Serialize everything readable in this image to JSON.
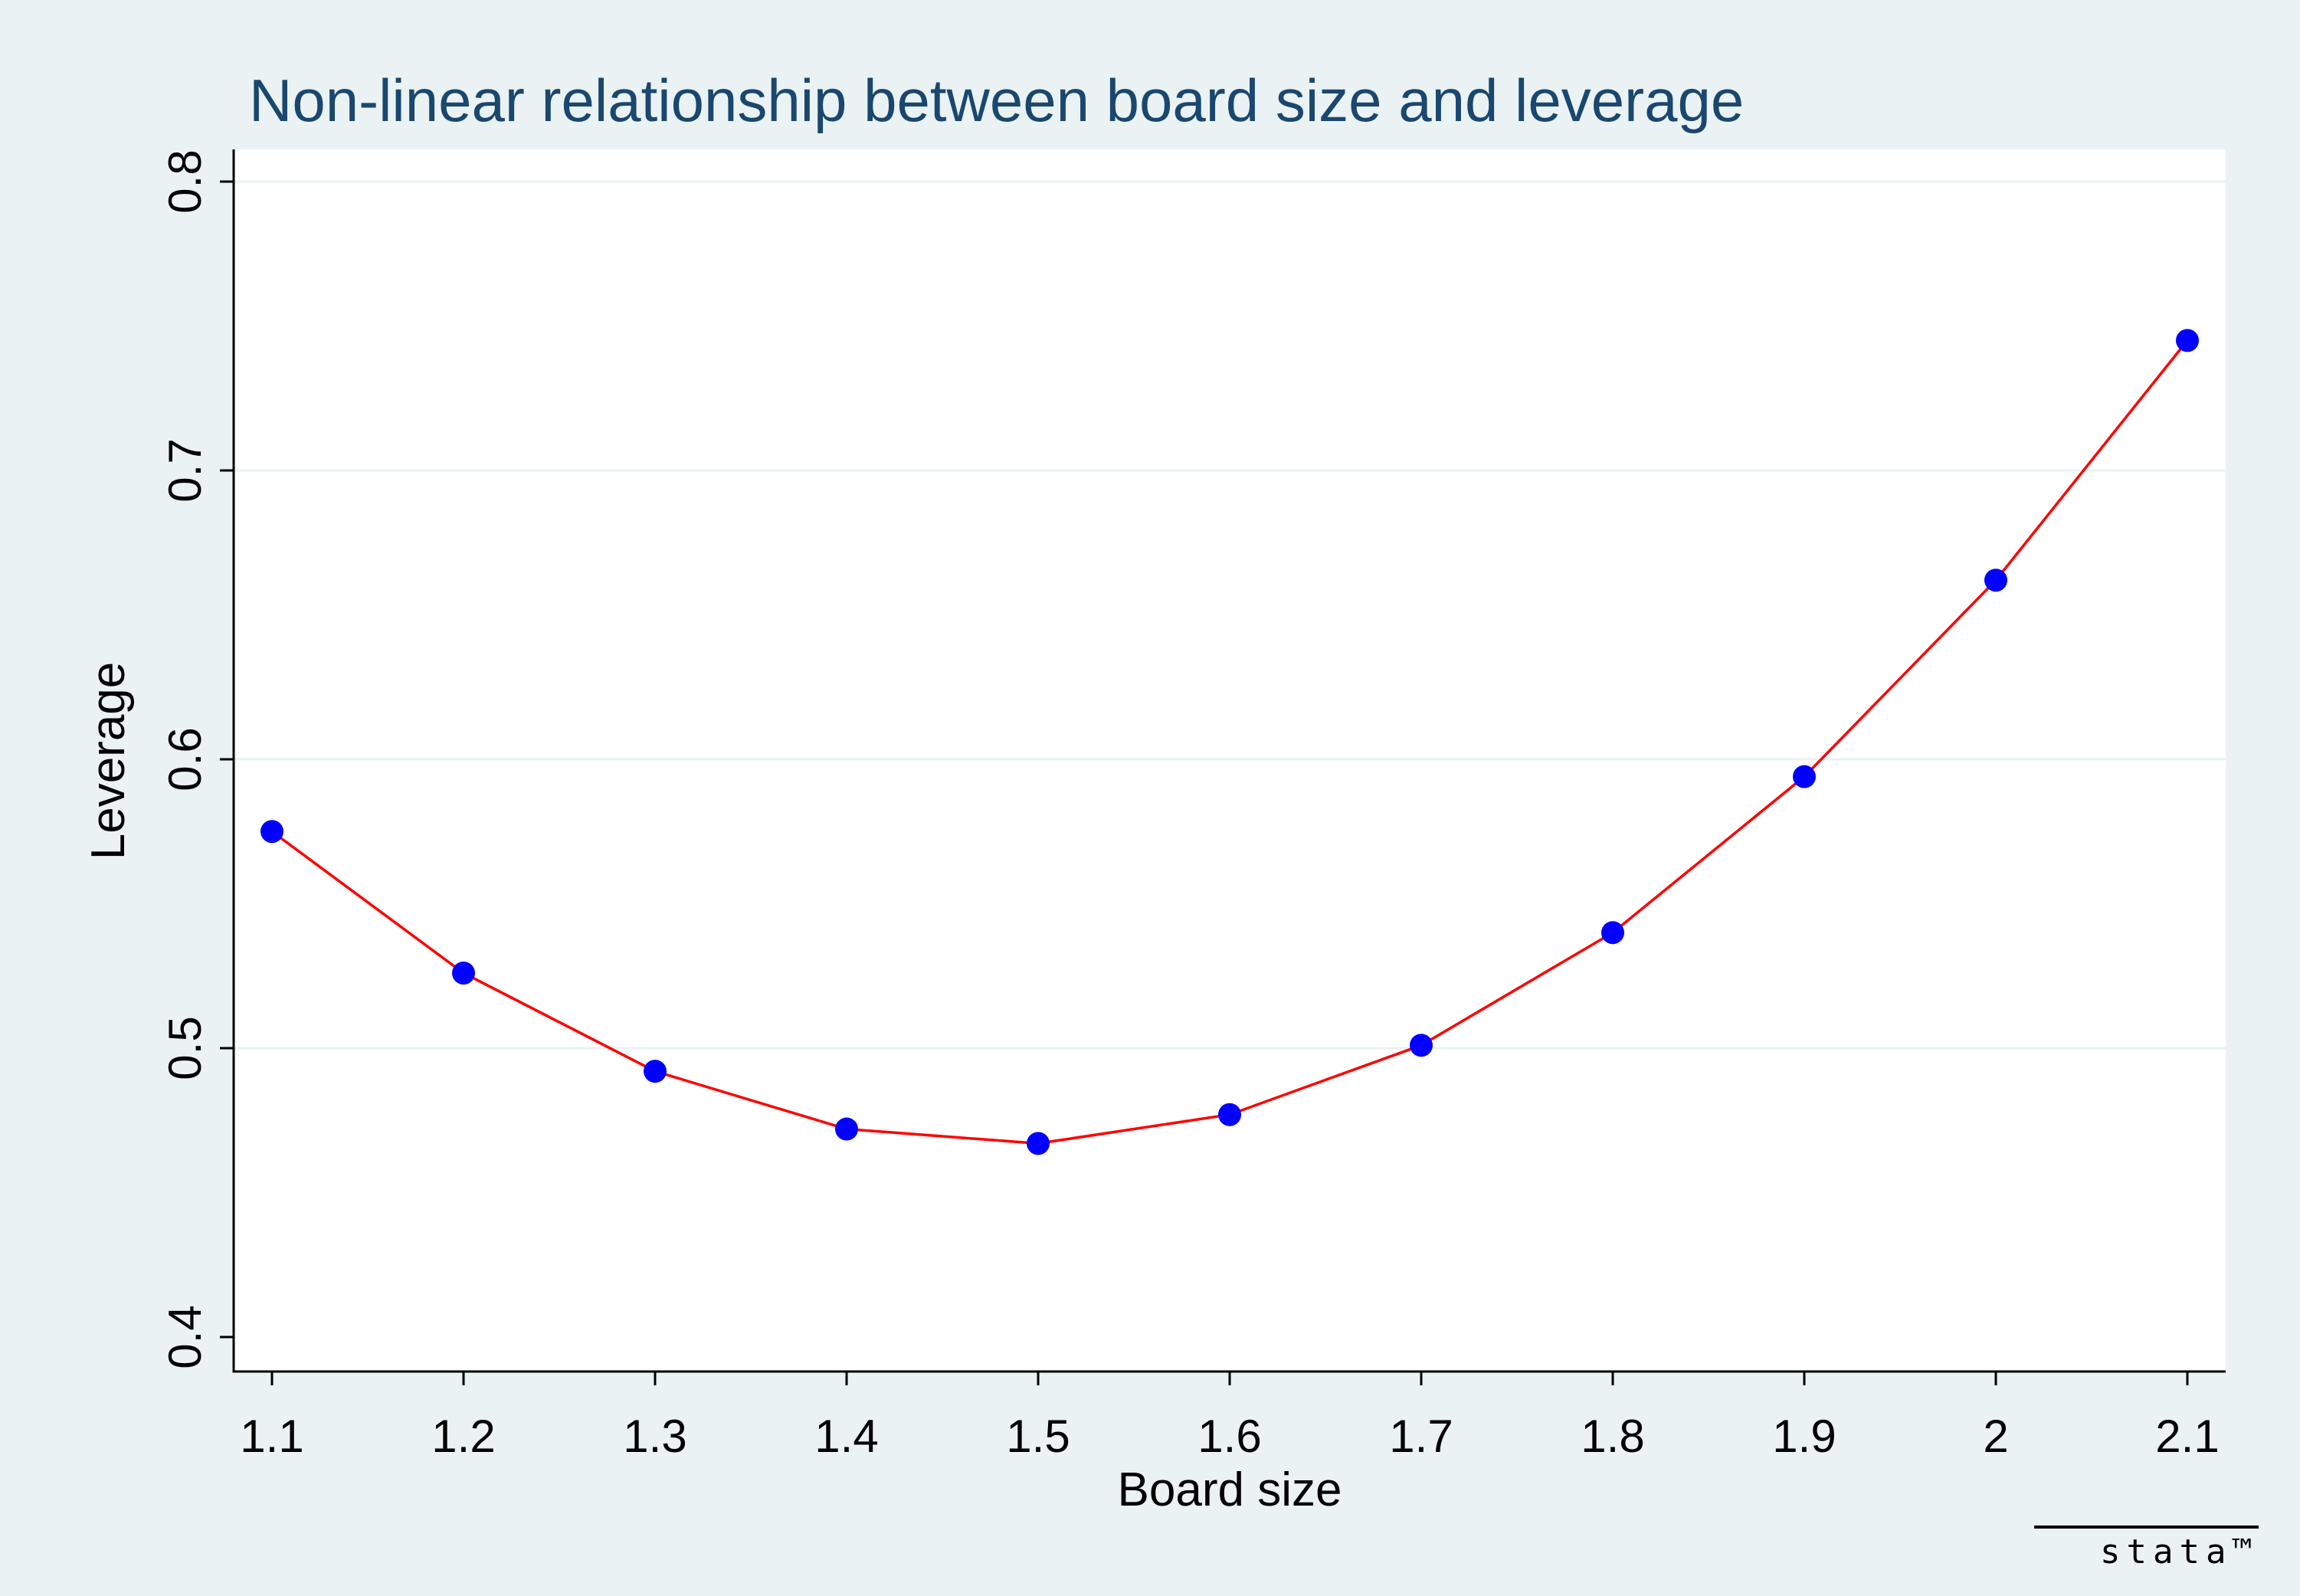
{
  "chart_data": {
    "type": "line",
    "title": "Non-linear relationship between board size and leverage",
    "xlabel": "Board size",
    "ylabel": "Leverage",
    "xlim": [
      1.1,
      2.1
    ],
    "ylim": [
      0.4,
      0.8
    ],
    "x_ticks": [
      "1.1",
      "1.2",
      "1.3",
      "1.4",
      "1.5",
      "1.6",
      "1.7",
      "1.8",
      "1.9",
      "2",
      "2.1"
    ],
    "y_ticks": [
      "0.4",
      "0.5",
      "0.6",
      "0.7",
      "0.8"
    ],
    "grid": true,
    "series": [
      {
        "x": [
          1.1,
          1.2,
          1.3,
          1.4,
          1.5,
          1.6,
          1.7,
          1.8,
          1.9,
          2.0,
          2.1
        ],
        "y": [
          0.575,
          0.526,
          0.492,
          0.472,
          0.467,
          0.477,
          0.501,
          0.54,
          0.594,
          0.662,
          0.745
        ],
        "line_color": "#ff0000",
        "marker_color": "#0000ff"
      }
    ],
    "background_color": "#eaf2f3",
    "plot_background_color": "#ffffff",
    "grid_color": "#eaf2f3",
    "title_color": "#1a476f",
    "watermark": "stata™"
  }
}
